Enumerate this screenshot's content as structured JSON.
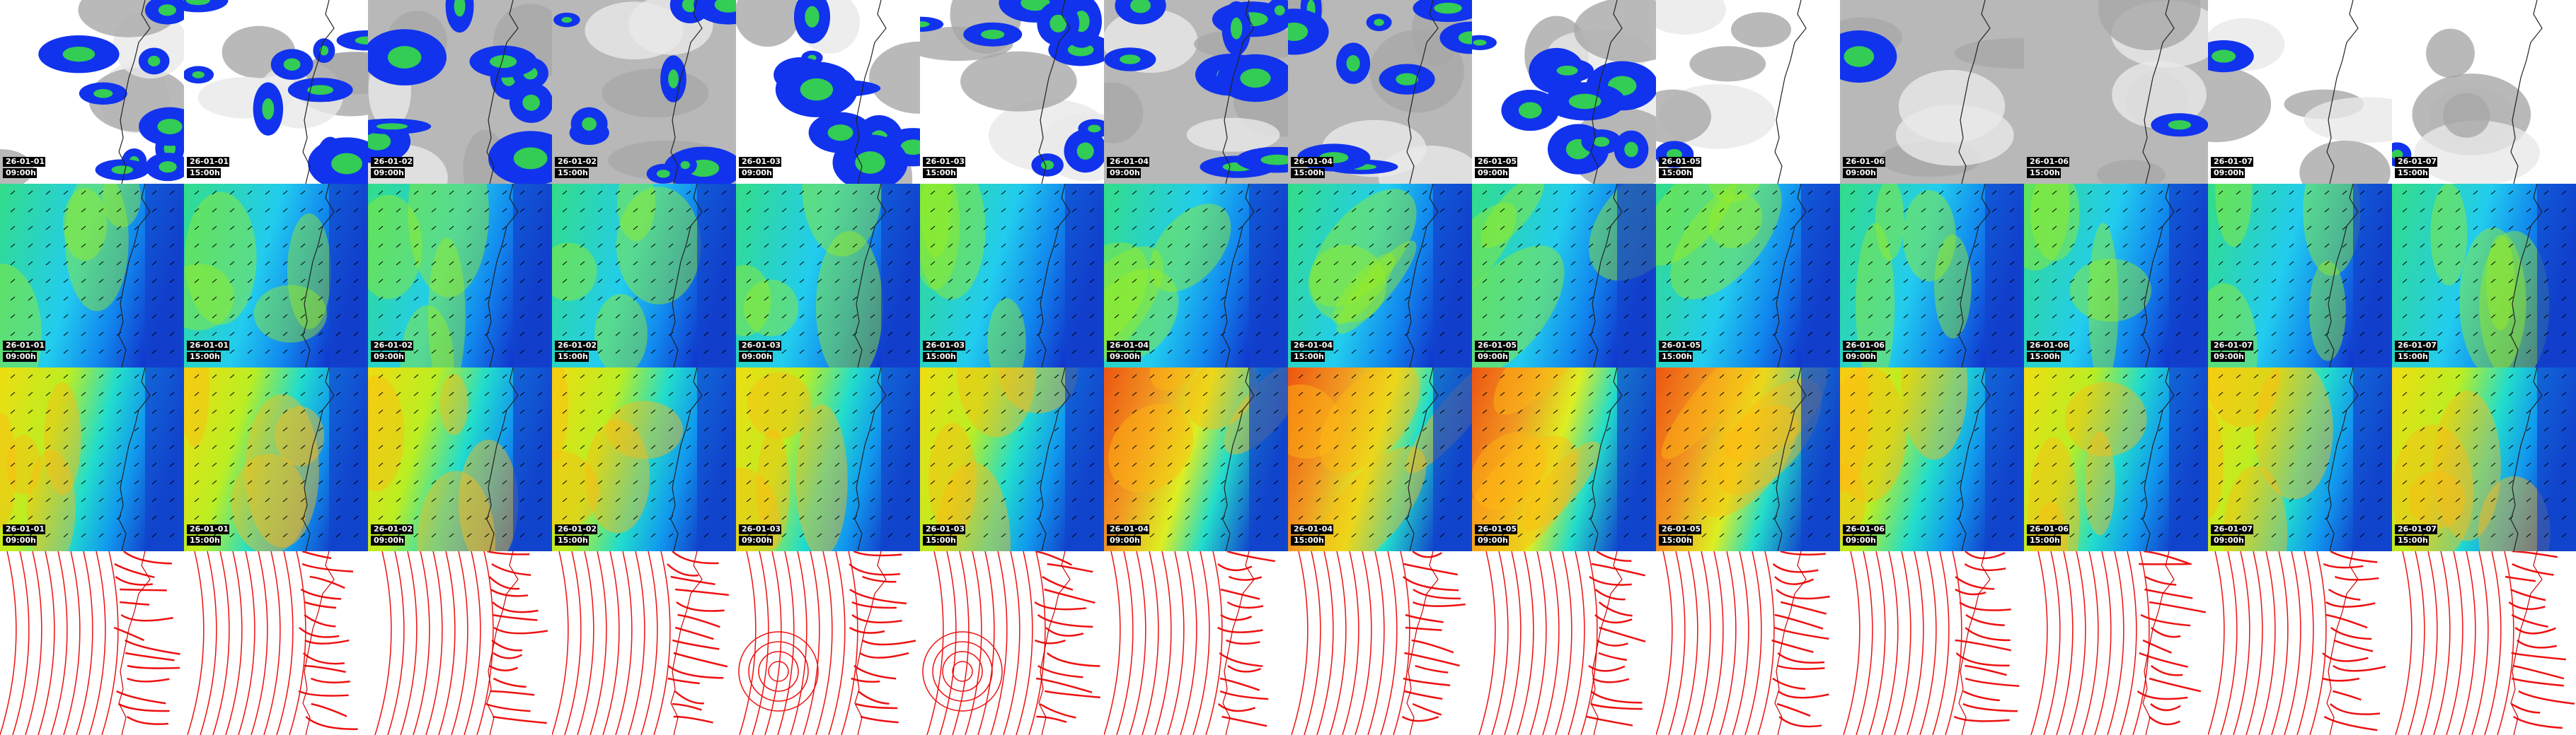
{
  "rows": [
    [
      {
        "date": "26-01-01",
        "time": "09:00h"
      },
      {
        "date": "26-01-01",
        "time": "15:00h"
      },
      {
        "date": "26-01-02",
        "time": "09:00h"
      },
      {
        "date": "26-01-02",
        "time": "15:00h"
      },
      {
        "date": "26-01-03",
        "time": "09:00h"
      },
      {
        "date": "26-01-03",
        "time": "15:00h"
      },
      {
        "date": "26-01-04",
        "time": "09:00h"
      },
      {
        "date": "26-01-04",
        "time": "15:00h"
      },
      {
        "date": "26-01-05",
        "time": "09:00h"
      },
      {
        "date": "26-01-05",
        "time": "15:00h"
      },
      {
        "date": "26-01-06",
        "time": "09:00h"
      },
      {
        "date": "26-01-06",
        "time": "15:00h"
      },
      {
        "date": "26-01-07",
        "time": "09:00h"
      },
      {
        "date": "26-01-07",
        "time": "15:00h"
      }
    ],
    [
      {
        "date": "26-01-01",
        "time": "09:00h"
      },
      {
        "date": "26-01-01",
        "time": "15:00h"
      },
      {
        "date": "26-01-02",
        "time": "09:00h"
      },
      {
        "date": "26-01-02",
        "time": "15:00h"
      },
      {
        "date": "26-01-03",
        "time": "09:00h"
      },
      {
        "date": "26-01-03",
        "time": "15:00h"
      },
      {
        "date": "26-01-04",
        "time": "09:00h"
      },
      {
        "date": "26-01-04",
        "time": "15:00h"
      },
      {
        "date": "26-01-05",
        "time": "09:00h"
      },
      {
        "date": "26-01-05",
        "time": "15:00h"
      },
      {
        "date": "26-01-06",
        "time": "09:00h"
      },
      {
        "date": "26-01-06",
        "time": "15:00h"
      },
      {
        "date": "26-01-07",
        "time": "09:00h"
      },
      {
        "date": "26-01-07",
        "time": "15:00h"
      }
    ],
    [
      {
        "date": "26-01-01",
        "time": "09:00h"
      },
      {
        "date": "26-01-01",
        "time": "15:00h"
      },
      {
        "date": "26-01-02",
        "time": "09:00h"
      },
      {
        "date": "26-01-02",
        "time": "15:00h"
      },
      {
        "date": "26-01-03",
        "time": "09:00h"
      },
      {
        "date": "26-01-03",
        "time": "15:00h"
      },
      {
        "date": "26-01-04",
        "time": "09:00h"
      },
      {
        "date": "26-01-04",
        "time": "15:00h"
      },
      {
        "date": "26-01-05",
        "time": "09:00h"
      },
      {
        "date": "26-01-05",
        "time": "15:00h"
      },
      {
        "date": "26-01-06",
        "time": "09:00h"
      },
      {
        "date": "26-01-06",
        "time": "15:00h"
      },
      {
        "date": "26-01-07",
        "time": "09:00h"
      },
      {
        "date": "26-01-07",
        "time": "15:00h"
      }
    ]
  ]
}
